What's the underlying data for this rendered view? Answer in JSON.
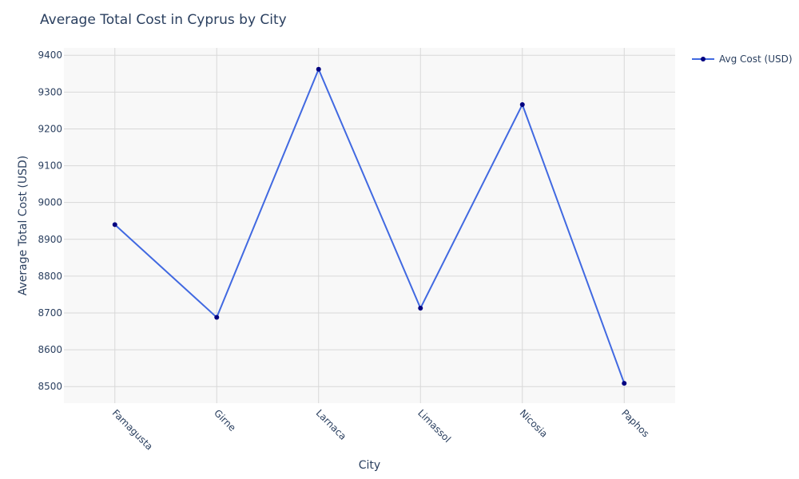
{
  "chart_data": {
    "type": "line",
    "title": "Average Total Cost in Cyprus by City",
    "xlabel": "City",
    "ylabel": "Average Total Cost (USD)",
    "categories": [
      "Famagusta",
      "Girne",
      "Larnaca",
      "Limassol",
      "Nicosia",
      "Paphos"
    ],
    "series": [
      {
        "name": "Avg Cost (USD)",
        "values": [
          8940,
          8688,
          9362,
          8713,
          9266,
          8509
        ],
        "line_color": "#4169e1",
        "marker_color": "#000080"
      }
    ],
    "ylim": [
      8455,
      9420
    ],
    "yticks": [
      8500,
      8600,
      8700,
      8800,
      8900,
      9000,
      9100,
      9200,
      9300,
      9400
    ],
    "grid": true,
    "legend_position": "top-right",
    "plot_background": "#f8f8f8",
    "grid_color": "#d8d8d8"
  }
}
